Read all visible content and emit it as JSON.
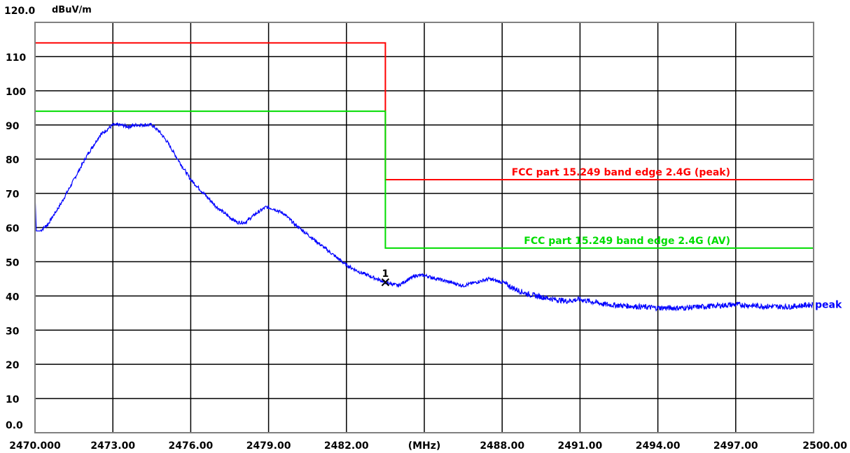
{
  "chart_data": {
    "type": "line",
    "title": "",
    "ylabel_unit": "dBuV/m",
    "xlabel_unit": "(MHz)",
    "xlim": [
      2470,
      2500
    ],
    "ylim": [
      0,
      120
    ],
    "grid": true,
    "x_ticks": [
      {
        "value": 2470,
        "label": "2470.000"
      },
      {
        "value": 2473,
        "label": "2473.00"
      },
      {
        "value": 2476,
        "label": "2476.00"
      },
      {
        "value": 2479,
        "label": "2479.00"
      },
      {
        "value": 2482,
        "label": "2482.00"
      },
      {
        "value": 2485,
        "label": "(MHz)"
      },
      {
        "value": 2488,
        "label": "2488.00"
      },
      {
        "value": 2491,
        "label": "2491.00"
      },
      {
        "value": 2494,
        "label": "2494.00"
      },
      {
        "value": 2497,
        "label": "2497.00"
      },
      {
        "value": 2500,
        "label": "2500.00"
      }
    ],
    "y_ticks": [
      {
        "value": 120,
        "label": "120.0"
      },
      {
        "value": 110,
        "label": "110"
      },
      {
        "value": 100,
        "label": "100"
      },
      {
        "value": 90,
        "label": "90"
      },
      {
        "value": 80,
        "label": "80"
      },
      {
        "value": 70,
        "label": "70"
      },
      {
        "value": 60,
        "label": "60"
      },
      {
        "value": 50,
        "label": "50"
      },
      {
        "value": 40,
        "label": "40"
      },
      {
        "value": 30,
        "label": "30"
      },
      {
        "value": 20,
        "label": "20"
      },
      {
        "value": 10,
        "label": "10"
      },
      {
        "value": 0,
        "label": "0.0"
      }
    ],
    "limit_lines": [
      {
        "label": "FCC part 15.249 band edge 2.4G (peak)",
        "color": "#ff0000",
        "points": [
          [
            2470,
            114
          ],
          [
            2483.5,
            114
          ],
          [
            2483.5,
            74
          ],
          [
            2500,
            74
          ]
        ]
      },
      {
        "label": "FCC part 15.249 band edge 2.4G (AV)",
        "color": "#00dd00",
        "points": [
          [
            2470,
            94
          ],
          [
            2483.5,
            94
          ],
          [
            2483.5,
            54
          ],
          [
            2500,
            54
          ]
        ]
      }
    ],
    "series": [
      {
        "name": "peak",
        "color": "#0000ff",
        "x": [
          2470,
          2470.05,
          2470.2,
          2470.5,
          2471,
          2471.5,
          2472,
          2472.5,
          2473,
          2473.3,
          2473.6,
          2473.9,
          2474.2,
          2474.5,
          2474.8,
          2475.1,
          2475.5,
          2476,
          2476.5,
          2477,
          2477.5,
          2477.8,
          2478.1,
          2478.5,
          2478.9,
          2479.2,
          2479.6,
          2480,
          2480.5,
          2481,
          2481.5,
          2482,
          2482.5,
          2483,
          2483.5,
          2484,
          2484.3,
          2484.7,
          2485,
          2485.5,
          2486,
          2486.5,
          2487,
          2487.5,
          2488,
          2488.5,
          2489,
          2490,
          2490.5,
          2491,
          2492,
          2493,
          2494,
          2495,
          2496,
          2497,
          2498,
          2499,
          2500
        ],
        "y": [
          70,
          59,
          59,
          61,
          67,
          74,
          81,
          87,
          90,
          90,
          89.5,
          90,
          90,
          90,
          88,
          85,
          80,
          74,
          70,
          66,
          63,
          61.5,
          61.5,
          64,
          66,
          65.5,
          64,
          61,
          58,
          55,
          52,
          49,
          47,
          45.5,
          44,
          43,
          44.5,
          46,
          46,
          45,
          44,
          43,
          44,
          45,
          44,
          42,
          40.5,
          39,
          38.5,
          39,
          37.5,
          37,
          36.5,
          36.5,
          37,
          37.5,
          37,
          36.8,
          37.5
        ]
      }
    ],
    "markers": [
      {
        "label": "1",
        "x": 2483.5,
        "y": 44
      }
    ]
  }
}
